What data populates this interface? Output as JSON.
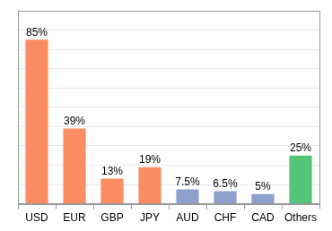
{
  "chart_data": {
    "type": "bar",
    "categories": [
      "USD",
      "EUR",
      "GBP",
      "JPY",
      "AUD",
      "CHF",
      "CAD",
      "Others"
    ],
    "values": [
      85,
      39,
      13,
      19,
      7.5,
      6.5,
      5,
      25
    ],
    "value_labels": [
      "85%",
      "39%",
      "13%",
      "19%",
      "7.5%",
      "6.5%",
      "5%",
      "25%"
    ],
    "colors": [
      "#fc8d62",
      "#fc8d62",
      "#fc8d62",
      "#fc8d62",
      "#8da0cb",
      "#8da0cb",
      "#8da0cb",
      "#55c57a"
    ],
    "ylim": [
      0,
      100
    ],
    "yticks": [
      0,
      10,
      20,
      30,
      40,
      50,
      60,
      70,
      80,
      90,
      100
    ],
    "grid": true,
    "data_labels": true,
    "tick_labels": "x"
  }
}
